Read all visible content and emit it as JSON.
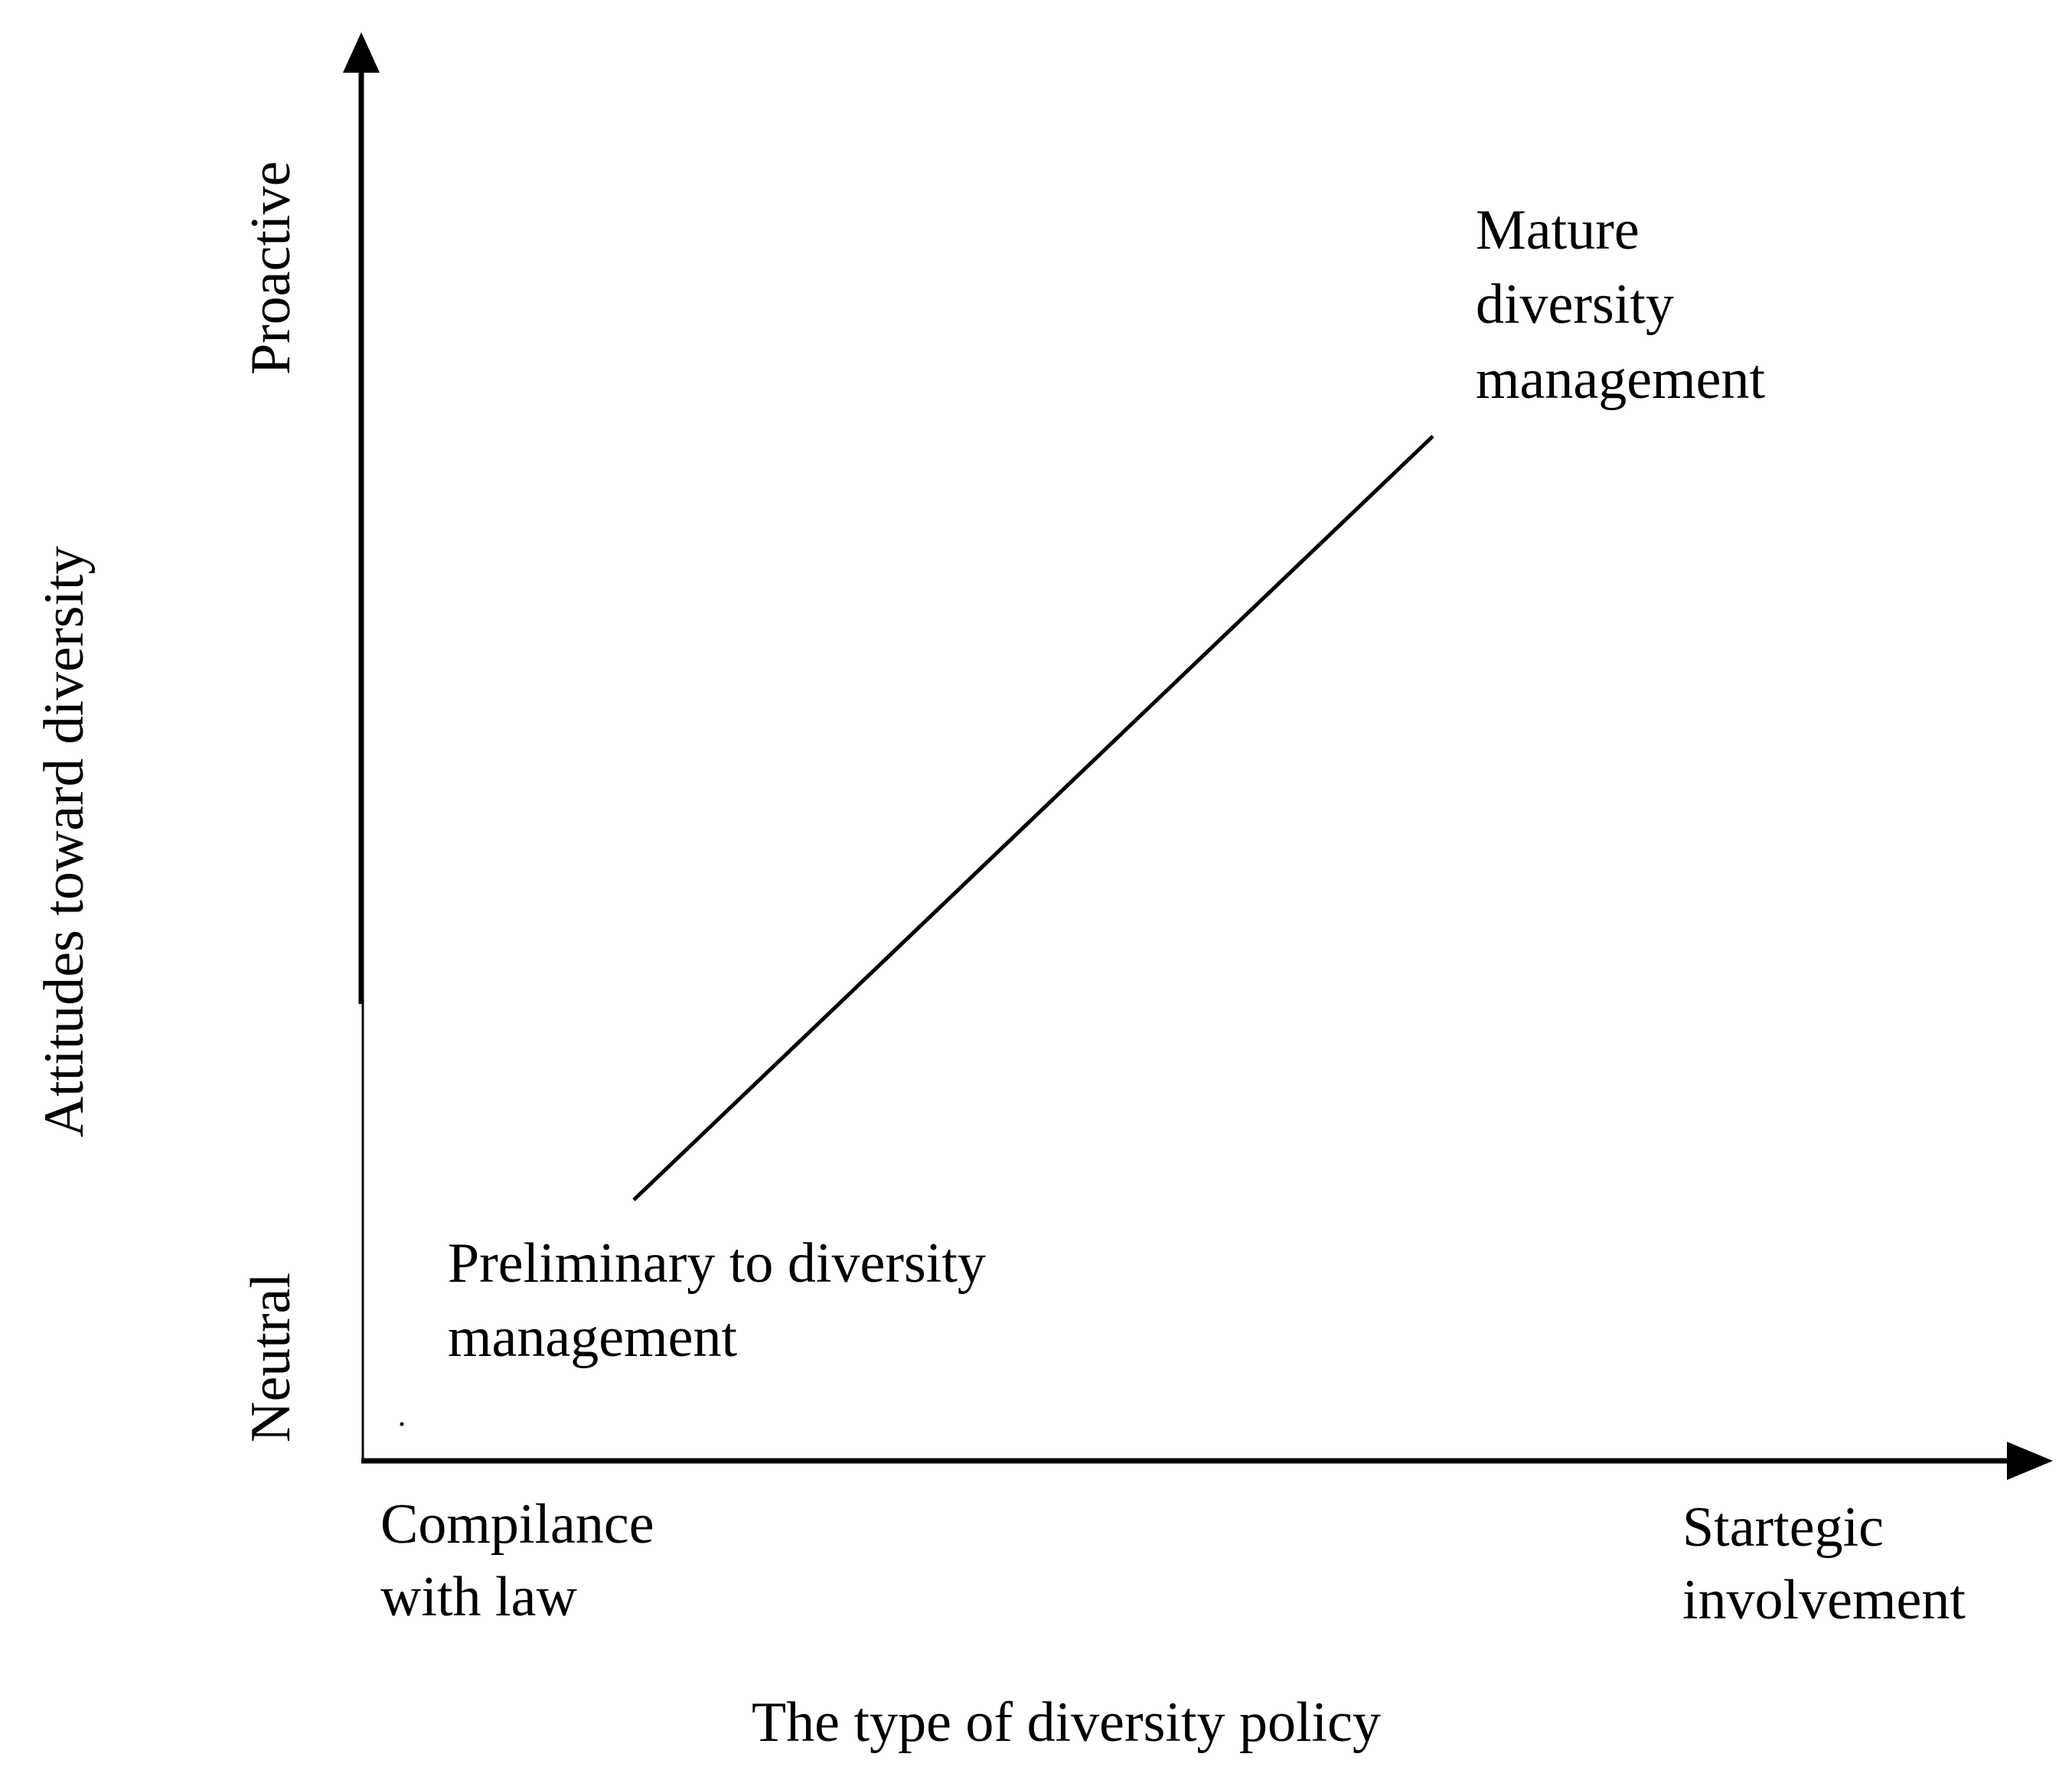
{
  "axes": {
    "y_title": "Attitudes toward diversity",
    "y_low": "Neutral",
    "y_high": "Proactive",
    "x_title": "The type of diversity policy",
    "x_low": [
      "Compilance",
      "with law"
    ],
    "x_high": [
      "Startegic",
      "involvement"
    ]
  },
  "stages": {
    "start": [
      "Preliminary to diversity",
      "management"
    ],
    "end": [
      "Mature",
      "diversity",
      "management"
    ]
  },
  "colors": {
    "ink": "#000000",
    "background": "#ffffff"
  }
}
